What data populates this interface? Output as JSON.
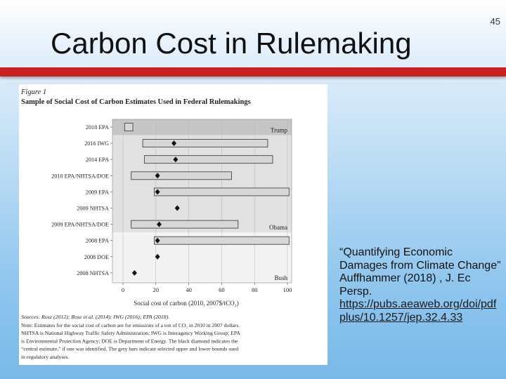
{
  "slide": {
    "number": "45",
    "title": "Carbon Cost in Rulemaking"
  },
  "colors": {
    "title_bar": "#cc1f1f",
    "bar_fill": "#d7d7d7",
    "trump_band": "#c6c6c6",
    "obama_band": "#e1e1e1",
    "bush_band": "#f3f3f3"
  },
  "figure": {
    "label": "Figure 1",
    "heading": "Sample of Social Cost of Carbon Estimates Used in Federal Rulemakings",
    "sources": "Sources: Rose (2012); Rose et al. (2014); IWG (2016); EPA (2018).",
    "note_lines": [
      "Note: Estimates for the social cost of carbon are for emissions of a ton of CO₂ in 2010 in 2007 dollars.",
      "NHTSA is National Highway Traffic Safety Administration; IWG is Interagency Working Group; EPA",
      "is Environmental Protection Agency; DOE is Department of Energy. The black diamond indicates the",
      "“central estimate,” if one was identified. The grey bars indicate selected upper and lower bounds used",
      "in regulatory analyses."
    ]
  },
  "chart_data": {
    "type": "range-bar",
    "xlabel": "Social cost of carbon (2010, 2007$/tCO₂)",
    "xlim": [
      0,
      100
    ],
    "xticks": [
      0,
      20,
      40,
      60,
      80,
      100
    ],
    "categories": [
      "2018 EPA",
      "2016 IWG",
      "2014 EPA",
      "2010 EPA/NHTSA/DOE",
      "2009 EPA",
      "2009 NHTSA",
      "2009 EPA/NHTSA/DOE",
      "2008 EPA",
      "2008 DOE",
      "2008 NHTSA"
    ],
    "ranges": [
      [
        1,
        6
      ],
      [
        12,
        88
      ],
      [
        13,
        91
      ],
      [
        5,
        66
      ],
      [
        19,
        101
      ],
      null,
      [
        5,
        70
      ],
      [
        19,
        101
      ],
      null,
      null
    ],
    "central": [
      null,
      31,
      32,
      21,
      21,
      33,
      22,
      21,
      21,
      7
    ],
    "administrations": [
      {
        "name": "Trump",
        "from": "2018 EPA",
        "to": "2018 EPA"
      },
      {
        "name": "Obama",
        "from": "2016 IWG",
        "to": "2009 EPA/NHTSA/DOE"
      },
      {
        "name": "Bush",
        "from": "2008 EPA",
        "to": "2008 NHTSA"
      }
    ]
  },
  "citation": {
    "text": "“Quantifying Economic Damages from Climate Change”  Auffhammer  (2018) , J. Ec Persp.",
    "link": "https://pubs.aeaweb.org/doi/pdfplus/10.1257/jep.32.4.33"
  }
}
